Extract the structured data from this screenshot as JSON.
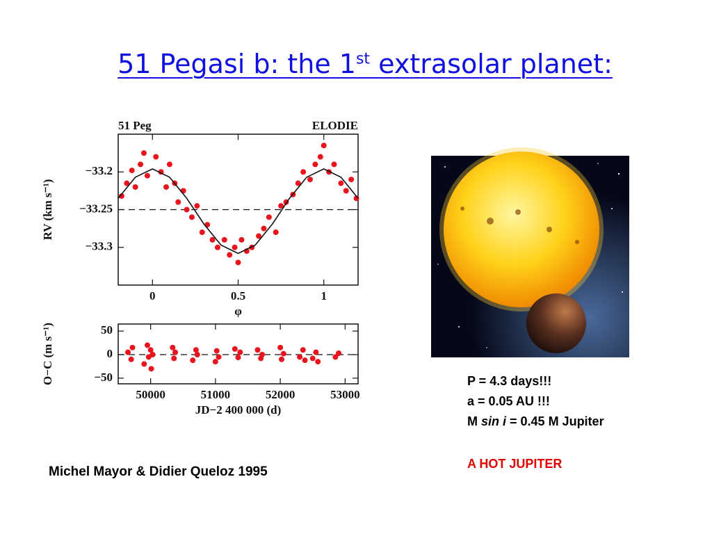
{
  "title": {
    "text": "51 Pegasi b: the 1",
    "superscript": "st",
    "rest": " extrasolar planet:"
  },
  "figure": {
    "panels": [
      {
        "type": "scatter",
        "label_left": "51  Peg",
        "label_right": "ELODIE",
        "x_label": "φ",
        "y_label": "RV  (km s⁻¹)",
        "xlim": [
          -0.2,
          1.2
        ],
        "ylim": [
          -33.35,
          -33.15
        ],
        "xticks": [
          0,
          0.5,
          1
        ],
        "yticks": [
          {
            "value": -33.2,
            "label": "−33.2"
          },
          {
            "value": -33.25,
            "label": "−33.25"
          },
          {
            "value": -33.3,
            "label": "−33.3"
          }
        ],
        "reference_line": -33.25,
        "color": "#e8141e",
        "points": {
          "x": [
            -0.18,
            -0.15,
            -0.12,
            -0.1,
            -0.07,
            -0.05,
            -0.03,
            0.02,
            0.05,
            0.08,
            0.1,
            0.13,
            0.15,
            0.18,
            0.2,
            0.23,
            0.26,
            0.29,
            0.32,
            0.35,
            0.38,
            0.42,
            0.45,
            0.48,
            0.5,
            0.52,
            0.55,
            0.58,
            0.62,
            0.65,
            0.68,
            0.72,
            0.75,
            0.78,
            0.82,
            0.85,
            0.88,
            0.92,
            0.95,
            0.98,
            1.0,
            1.03,
            1.06,
            1.1,
            1.13,
            1.16,
            1.19
          ],
          "y": [
            -33.232,
            -33.215,
            -33.198,
            -33.22,
            -33.19,
            -33.175,
            -33.205,
            -33.18,
            -33.2,
            -33.22,
            -33.19,
            -33.215,
            -33.24,
            -33.225,
            -33.25,
            -33.26,
            -33.245,
            -33.28,
            -33.27,
            -33.29,
            -33.3,
            -33.29,
            -33.31,
            -33.3,
            -33.32,
            -33.29,
            -33.305,
            -33.3,
            -33.285,
            -33.275,
            -33.26,
            -33.28,
            -33.245,
            -33.24,
            -33.23,
            -33.215,
            -33.2,
            -33.21,
            -33.19,
            -33.18,
            -33.165,
            -33.2,
            -33.19,
            -33.215,
            -33.225,
            -33.21,
            -33.235
          ]
        },
        "fit": {
          "x": [
            -0.2,
            -0.1,
            0,
            0.1,
            0.2,
            0.3,
            0.4,
            0.5,
            0.6,
            0.7,
            0.8,
            0.9,
            1.0,
            1.1,
            1.2
          ],
          "y": [
            -33.235,
            -33.207,
            -33.196,
            -33.207,
            -33.235,
            -33.269,
            -33.297,
            -33.308,
            -33.297,
            -33.269,
            -33.235,
            -33.207,
            -33.196,
            -33.207,
            -33.235
          ]
        }
      },
      {
        "type": "scatter",
        "x_label": "JD−2 400 000  (d)",
        "y_label": "O−C  (m s⁻¹)",
        "xlim": [
          49500,
          53200
        ],
        "ylim": [
          -62,
          65
        ],
        "xticks": [
          50000,
          51000,
          52000,
          53000
        ],
        "yticks": [
          50,
          0,
          {
            "value": -50,
            "label": "−50"
          }
        ],
        "reference_line": 0,
        "color": "#e8141e",
        "points": {
          "x": [
            49650,
            49700,
            49720,
            49900,
            49950,
            49970,
            50000,
            50010,
            50030,
            50340,
            50360,
            50380,
            50650,
            50700,
            50720,
            51000,
            51020,
            51050,
            51300,
            51350,
            51380,
            51650,
            51700,
            51720,
            52000,
            52020,
            52050,
            52300,
            52350,
            52380,
            52500,
            52550,
            52580,
            52850,
            52900
          ],
          "y": [
            5,
            -10,
            15,
            -20,
            20,
            -5,
            10,
            -30,
            0,
            15,
            -8,
            5,
            -12,
            10,
            0,
            -15,
            8,
            -5,
            12,
            -6,
            5,
            10,
            -8,
            0,
            15,
            -10,
            2,
            -5,
            10,
            -12,
            -8,
            5,
            -15,
            -5,
            3
          ]
        }
      }
    ]
  },
  "info": {
    "period": "P = 4.3 days!!!",
    "axis": "a = 0.05 AU !!!",
    "mass_prefix": "M ",
    "mass_italic": "sin i",
    "mass_rest": " = 0.45 M Jupiter",
    "highlight": "A HOT JUPITER"
  },
  "caption": "Michel Mayor & Didier Queloz 1995"
}
